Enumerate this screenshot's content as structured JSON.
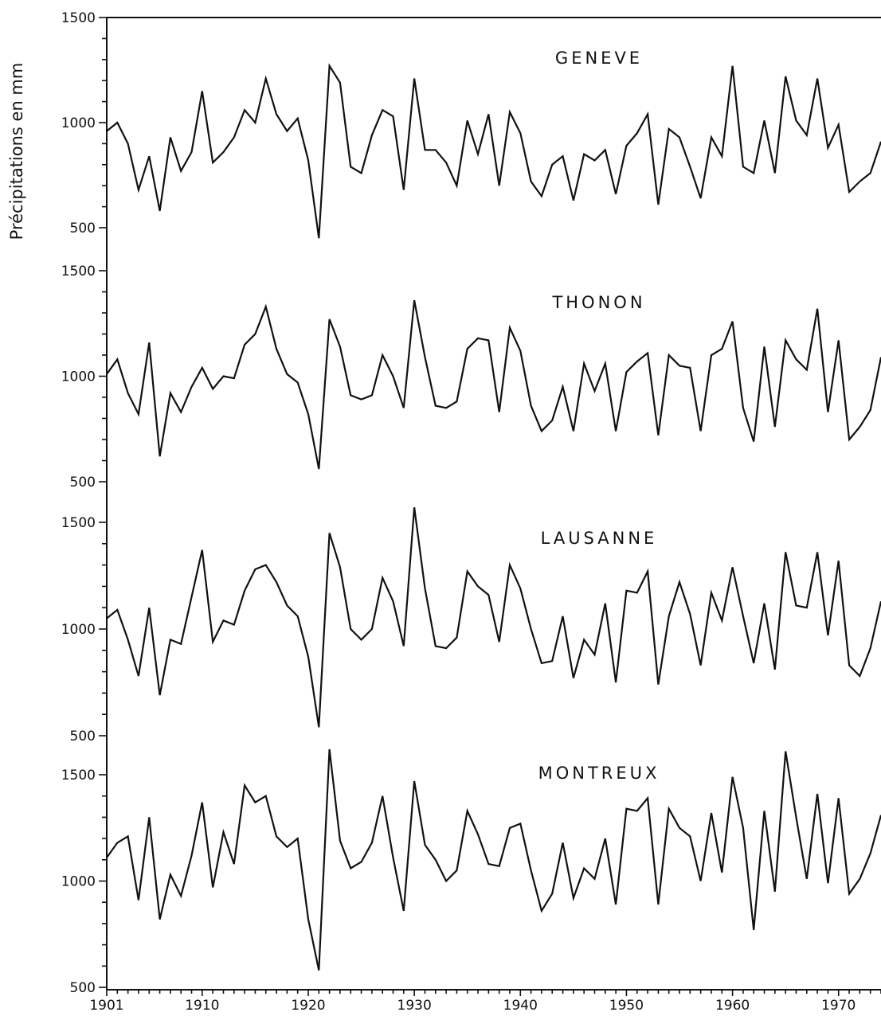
{
  "chart_data": {
    "type": "line",
    "ylabel": "Précipitations   en   mm",
    "xlim": [
      1901,
      1974
    ],
    "x_ticks": [
      1901,
      1910,
      1920,
      1930,
      1940,
      1950,
      1960,
      1970
    ],
    "y_ticks": [
      500,
      1000,
      1500
    ],
    "panels": [
      {
        "title": "GENEVE",
        "ylim": [
          500,
          1500
        ],
        "x": [
          1901,
          1902,
          1903,
          1904,
          1905,
          1906,
          1907,
          1908,
          1909,
          1910,
          1911,
          1912,
          1913,
          1914,
          1915,
          1916,
          1917,
          1918,
          1919,
          1920,
          1921,
          1922,
          1923,
          1924,
          1925,
          1926,
          1927,
          1928,
          1929,
          1930,
          1931,
          1932,
          1933,
          1934,
          1935,
          1936,
          1937,
          1938,
          1939,
          1940,
          1941,
          1942,
          1943,
          1944,
          1945,
          1946,
          1947,
          1948,
          1949,
          1950,
          1951,
          1952,
          1953,
          1954,
          1955,
          1956,
          1957,
          1958,
          1959,
          1960,
          1961,
          1962,
          1963,
          1964,
          1965,
          1966,
          1967,
          1968,
          1969,
          1970,
          1971,
          1972,
          1973,
          1974
        ],
        "values": [
          960,
          1000,
          900,
          680,
          840,
          580,
          930,
          770,
          860,
          1150,
          810,
          860,
          930,
          1060,
          1000,
          1210,
          1040,
          960,
          1020,
          820,
          450,
          1270,
          1190,
          790,
          760,
          940,
          1060,
          1030,
          680,
          1210,
          870,
          870,
          810,
          700,
          1010,
          850,
          1040,
          700,
          1050,
          950,
          720,
          650,
          800,
          840,
          630,
          850,
          820,
          870,
          660,
          890,
          950,
          1040,
          610,
          970,
          930,
          790,
          640,
          930,
          840,
          1270,
          790,
          760,
          1010,
          760,
          1220,
          1010,
          940,
          1210,
          880,
          990,
          670,
          720,
          760,
          910
        ]
      },
      {
        "title": "THONON",
        "ylim": [
          500,
          1500
        ],
        "x": [
          1901,
          1902,
          1903,
          1904,
          1905,
          1906,
          1907,
          1908,
          1909,
          1910,
          1911,
          1912,
          1913,
          1914,
          1915,
          1916,
          1917,
          1918,
          1919,
          1920,
          1921,
          1922,
          1923,
          1924,
          1925,
          1926,
          1927,
          1928,
          1929,
          1930,
          1931,
          1932,
          1933,
          1934,
          1935,
          1936,
          1937,
          1938,
          1939,
          1940,
          1941,
          1942,
          1943,
          1944,
          1945,
          1946,
          1947,
          1948,
          1949,
          1950,
          1951,
          1952,
          1953,
          1954,
          1955,
          1956,
          1957,
          1958,
          1959,
          1960,
          1961,
          1962,
          1963,
          1964,
          1965,
          1966,
          1967,
          1968,
          1969,
          1970,
          1971,
          1972,
          1973,
          1974
        ],
        "values": [
          1010,
          1080,
          920,
          820,
          1160,
          620,
          920,
          830,
          950,
          1040,
          940,
          1000,
          990,
          1150,
          1200,
          1330,
          1130,
          1010,
          970,
          820,
          560,
          1270,
          1140,
          910,
          890,
          910,
          1100,
          1000,
          850,
          1360,
          1090,
          860,
          850,
          880,
          1130,
          1180,
          1170,
          830,
          1230,
          1120,
          860,
          740,
          790,
          950,
          740,
          1060,
          930,
          1060,
          740,
          1020,
          1070,
          1110,
          720,
          1100,
          1050,
          1040,
          740,
          1100,
          1130,
          1260,
          850,
          690,
          1140,
          760,
          1170,
          1080,
          1030,
          1320,
          830,
          1170,
          700,
          760,
          840,
          1090
        ]
      },
      {
        "title": "LAUSANNE",
        "ylim": [
          500,
          1500
        ],
        "x": [
          1901,
          1902,
          1903,
          1904,
          1905,
          1906,
          1907,
          1908,
          1909,
          1910,
          1911,
          1912,
          1913,
          1914,
          1915,
          1916,
          1917,
          1918,
          1919,
          1920,
          1921,
          1922,
          1923,
          1924,
          1925,
          1926,
          1927,
          1928,
          1929,
          1930,
          1931,
          1932,
          1933,
          1934,
          1935,
          1936,
          1937,
          1938,
          1939,
          1940,
          1941,
          1942,
          1943,
          1944,
          1945,
          1946,
          1947,
          1948,
          1949,
          1950,
          1951,
          1952,
          1953,
          1954,
          1955,
          1956,
          1957,
          1958,
          1959,
          1960,
          1961,
          1962,
          1963,
          1964,
          1965,
          1966,
          1967,
          1968,
          1969,
          1970,
          1971,
          1972,
          1973,
          1974
        ],
        "values": [
          1050,
          1090,
          950,
          780,
          1100,
          690,
          950,
          930,
          1150,
          1370,
          940,
          1040,
          1020,
          1180,
          1280,
          1300,
          1220,
          1110,
          1060,
          870,
          540,
          1450,
          1290,
          1000,
          950,
          1000,
          1240,
          1130,
          920,
          1570,
          1190,
          920,
          910,
          960,
          1270,
          1200,
          1160,
          940,
          1300,
          1190,
          1000,
          840,
          850,
          1060,
          770,
          950,
          880,
          1120,
          750,
          1180,
          1170,
          1270,
          740,
          1060,
          1220,
          1070,
          830,
          1170,
          1040,
          1290,
          1060,
          840,
          1120,
          810,
          1360,
          1110,
          1100,
          1360,
          970,
          1320,
          830,
          780,
          910,
          1130
        ]
      },
      {
        "title": "MONTREUX",
        "ylim": [
          500,
          1500
        ],
        "x": [
          1901,
          1902,
          1903,
          1904,
          1905,
          1906,
          1907,
          1908,
          1909,
          1910,
          1911,
          1912,
          1913,
          1914,
          1915,
          1916,
          1917,
          1918,
          1919,
          1920,
          1921,
          1922,
          1923,
          1924,
          1925,
          1926,
          1927,
          1928,
          1929,
          1930,
          1931,
          1932,
          1933,
          1934,
          1935,
          1936,
          1937,
          1938,
          1939,
          1940,
          1941,
          1942,
          1943,
          1944,
          1945,
          1946,
          1947,
          1948,
          1949,
          1950,
          1951,
          1952,
          1953,
          1954,
          1955,
          1956,
          1957,
          1958,
          1959,
          1960,
          1961,
          1962,
          1963,
          1964,
          1965,
          1966,
          1967,
          1968,
          1969,
          1970,
          1971,
          1972,
          1973,
          1974
        ],
        "values": [
          1110,
          1180,
          1210,
          910,
          1300,
          820,
          1030,
          930,
          1120,
          1370,
          970,
          1230,
          1080,
          1450,
          1370,
          1400,
          1210,
          1160,
          1200,
          820,
          580,
          1620,
          1190,
          1060,
          1090,
          1180,
          1400,
          1110,
          860,
          1470,
          1170,
          1100,
          1000,
          1050,
          1330,
          1220,
          1080,
          1070,
          1250,
          1270,
          1050,
          860,
          940,
          1180,
          920,
          1060,
          1010,
          1200,
          890,
          1340,
          1330,
          1390,
          890,
          1340,
          1250,
          1210,
          1000,
          1320,
          1040,
          1490,
          1250,
          770,
          1330,
          950,
          1610,
          1300,
          1010,
          1410,
          990,
          1390,
          940,
          1010,
          1130,
          1310
        ]
      }
    ]
  }
}
